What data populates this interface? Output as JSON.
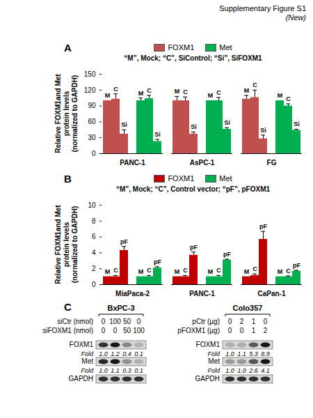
{
  "header": {
    "title": "Supplementary Figure  S1",
    "note": "(New)"
  },
  "chart_data": [
    {
      "panel": "A",
      "type": "bar",
      "subtitle": "“M”, Mock; “C”, SiControl; “Si”, SiFOXM1",
      "y_label": [
        "Relative FOXM1and Met",
        "protein levels",
        "(normalized to GAPDH)"
      ],
      "categories": [
        "PANC-1",
        "AsPC-1",
        "FG"
      ],
      "conditions": [
        "M",
        "C",
        "Si"
      ],
      "series": [
        {
          "name": "FOXM1",
          "color": "#c0504d",
          "values": [
            [
              100,
              103,
              37
            ],
            [
              100,
              100,
              37
            ],
            [
              103,
              106,
              28
            ]
          ],
          "errors": [
            [
              0,
              10,
              8
            ],
            [
              8,
              7,
              4
            ],
            [
              7,
              14,
              7
            ]
          ]
        },
        {
          "name": "Met",
          "color": "#00b050",
          "values": [
            [
              100,
              104,
              23
            ],
            [
              100,
              100,
              46
            ],
            [
              100,
              90,
              44
            ]
          ],
          "errors": [
            [
              5,
              6,
              4
            ],
            [
              0,
              6,
              3
            ],
            [
              0,
              4,
              2
            ]
          ]
        }
      ],
      "ylim": [
        0,
        150
      ],
      "yticks": [
        0,
        30,
        60,
        90,
        120,
        150
      ],
      "grid": false,
      "legend": "top"
    },
    {
      "panel": "B",
      "type": "bar",
      "subtitle": "“M”, Mock; “C”, Control vector; “pF”, pFOXM1",
      "y_label": [
        "Relative FOXM1and Met",
        "protein levels",
        "(normalized to GAPDH)"
      ],
      "categories": [
        "MiaPaca-2",
        "PANC-1",
        "CaPan-1"
      ],
      "conditions": [
        "M",
        "C",
        "pF"
      ],
      "series": [
        {
          "name": "FOXM1",
          "color": "#c00000",
          "values": [
            [
              1,
              1,
              4.3
            ],
            [
              1,
              1,
              3.7
            ],
            [
              1,
              1.15,
              5.7
            ]
          ],
          "errors": [
            [
              0,
              0.15,
              0.5
            ],
            [
              0,
              0.15,
              0.4
            ],
            [
              0,
              0.2,
              1.0
            ]
          ]
        },
        {
          "name": "Met",
          "color": "#00b050",
          "values": [
            [
              1,
              1,
              2.1
            ],
            [
              1,
              1,
              3.1
            ],
            [
              1,
              1,
              1.7
            ]
          ],
          "errors": [
            [
              0,
              0.15,
              0.15
            ],
            [
              0,
              0.15,
              0.1
            ],
            [
              0,
              0.1,
              0.1
            ]
          ]
        }
      ],
      "ylim": [
        0,
        10
      ],
      "yticks": [
        0,
        2,
        4,
        6,
        8,
        10
      ],
      "grid": false,
      "legend": "top"
    }
  ],
  "panel_c": {
    "panel": "C",
    "fold_label": "Fold",
    "loading": "GAPDH",
    "blots": [
      {
        "cell_line": "BxPC-3",
        "treatments": [
          {
            "label": "siCtr (nmol)",
            "values": [
              0,
              100,
              50,
              0
            ]
          },
          {
            "label": "siFOXM1 (nmol)",
            "values": [
              0,
              0,
              50,
              100
            ]
          }
        ],
        "bands": [
          {
            "label": "FOXM1",
            "fold": [
              "1.0",
              "1.2",
              "0.4",
              "0.1"
            ]
          },
          {
            "label": "Met",
            "fold": [
              "1.0",
              "1.1",
              "0.3",
              "0.1"
            ]
          }
        ]
      },
      {
        "cell_line": "Colo357",
        "treatments": [
          {
            "label": "pCtr (µg)",
            "values": [
              0,
              2,
              1,
              0
            ]
          },
          {
            "label": "pFOXM1 (µg)",
            "values": [
              0,
              0,
              1,
              2
            ]
          }
        ],
        "bands": [
          {
            "label": "FOXM1",
            "fold": [
              "1.0",
              "1.1",
              "5.3",
              "8.9"
            ]
          },
          {
            "label": "Met",
            "fold": [
              "1.0",
              "1.0",
              "2.6",
              "4.1"
            ]
          }
        ]
      }
    ]
  }
}
